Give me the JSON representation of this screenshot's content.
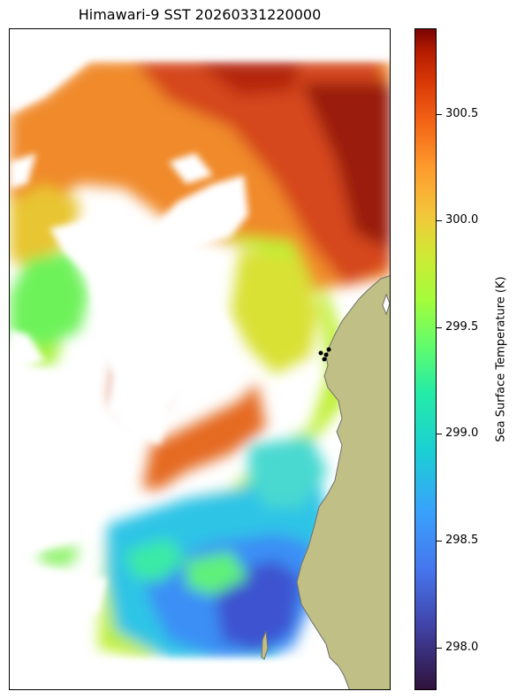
{
  "title": "Himawari-9 SST 20260331220000",
  "colorbar": {
    "label": "Sea Surface Temperature (K)",
    "colormap": "turbo",
    "range": [
      297.8,
      300.9
    ],
    "ticks": [
      "298.0",
      "298.5",
      "299.0",
      "299.5",
      "300.0",
      "300.5"
    ]
  },
  "colors": {
    "land": "#c0bf85",
    "coastline": "#6e6e6e",
    "no_data": "#ffffff",
    "markers": "#000000"
  }
}
